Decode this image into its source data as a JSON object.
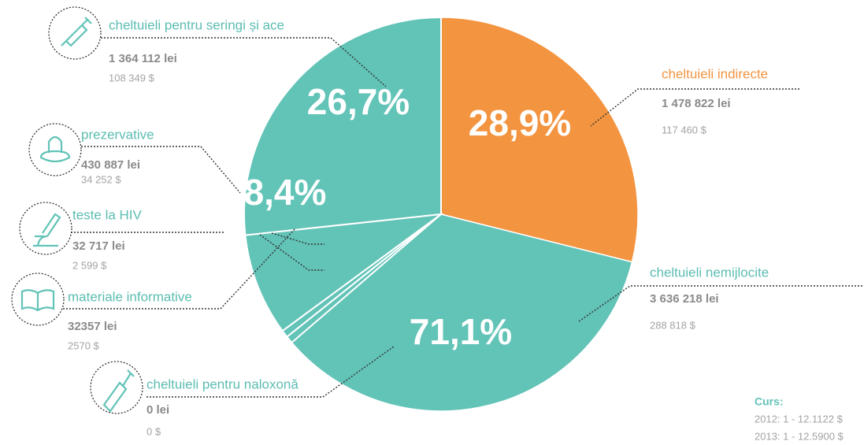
{
  "chart_data": {
    "type": "pie",
    "items": [
      {
        "name": "cheltuieli indirecte",
        "lei": "1 478 822 lei",
        "usd": "117 460 $"
      },
      {
        "name": "cheltuieli nemijlocite",
        "lei": "3 636 218 lei",
        "usd": "288 818 $"
      },
      {
        "name": "cheltuieli pentru seringi și ace",
        "lei": "1 364 112 lei",
        "usd": "108 349 $"
      },
      {
        "name": "prezervative",
        "lei": "430 887 lei",
        "usd": "34 252 $"
      },
      {
        "name": "teste la HIV",
        "lei": "32 717 lei",
        "usd": "2 599 $"
      },
      {
        "name": "materiale informative",
        "lei": "32357 lei",
        "usd": "2570 $"
      },
      {
        "name": "cheltuieli pentru naloxonă",
        "lei": "0 lei",
        "usd": "0 $"
      }
    ],
    "values": [
      28.9,
      71.1
    ],
    "value_labels": [
      "28,9%",
      "71,1%"
    ],
    "colors": [
      "#f39440",
      "#62c3b7"
    ],
    "sub_slices": {
      "values": [
        26.7,
        8.4,
        0.6,
        0.6
      ],
      "value_labels": [
        "26,7%",
        "8,4%",
        "0,6%",
        "0,6%"
      ]
    },
    "note": {
      "title": "Curs:",
      "lines": [
        "2012: 1 - 12.1122 $",
        "2013: 1 - 12.5900 $"
      ]
    }
  }
}
